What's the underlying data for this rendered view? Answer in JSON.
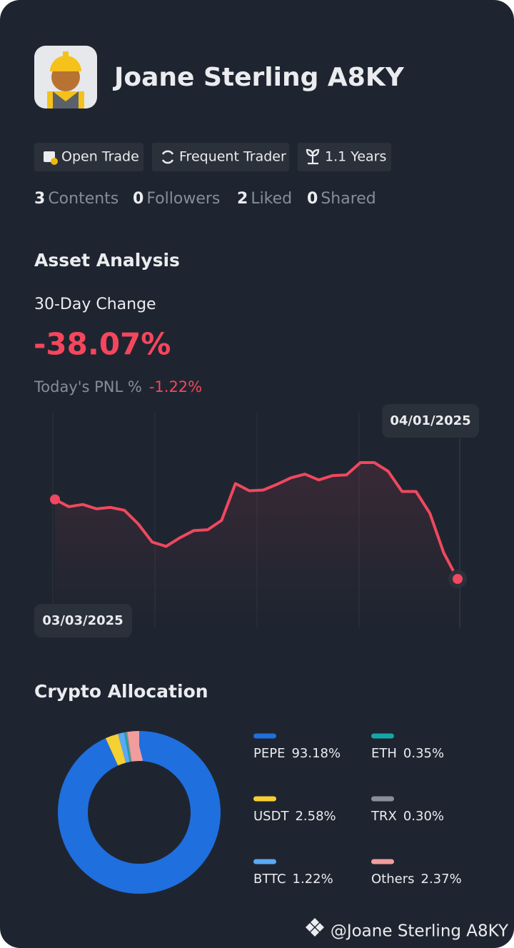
{
  "profile": {
    "name": "Joane Sterling A8KY",
    "badges": [
      "Open Trade",
      "Frequent Trader",
      "1.1 Years"
    ],
    "stats": [
      {
        "count": 3,
        "label": "Contents"
      },
      {
        "count": 0,
        "label": "Followers"
      },
      {
        "count": 2,
        "label": "Liked"
      },
      {
        "count": 0,
        "label": "Shared"
      }
    ]
  },
  "asset_analysis": {
    "title": "Asset Analysis",
    "change_label": "30-Day Change",
    "change_value": "-38.07%",
    "pnl_label": "Today's PNL %",
    "pnl_value": "-1.22%"
  },
  "chart_data": [
    {
      "type": "line",
      "start_date": "03/03/2025",
      "end_date": "04/01/2025",
      "color": "#f0485f",
      "values": [
        0,
        -3.46,
        -2.42,
        -4.5,
        -3.81,
        -5.19,
        -11.76,
        -20.41,
        -22.49,
        -18.34,
        -14.88,
        -14.53,
        -10.03,
        7.61,
        4.15,
        4.5,
        7.27,
        10.38,
        12.11,
        9.34,
        11.42,
        11.76,
        17.65,
        17.65,
        13.49,
        3.81,
        3.81,
        -6.57,
        -25.6,
        -38.07
      ]
    },
    {
      "type": "donut",
      "title": "Crypto Allocation",
      "categories": [
        "PEPE",
        "USDT",
        "BTTC",
        "ETH",
        "TRX",
        "Others"
      ],
      "values": [
        93.18,
        2.58,
        1.22,
        0.35,
        0.3,
        2.37
      ],
      "value_labels": [
        "93.18%",
        "2.58%",
        "1.22%",
        "0.35%",
        "0.30%",
        "2.37%"
      ],
      "colors": [
        "#1f6fde",
        "#f5d033",
        "#5aa9f5",
        "#14a7a7",
        "#8a8f98",
        "#f29d9d"
      ]
    }
  ],
  "watermark": "@Joane Sterling A8KY"
}
